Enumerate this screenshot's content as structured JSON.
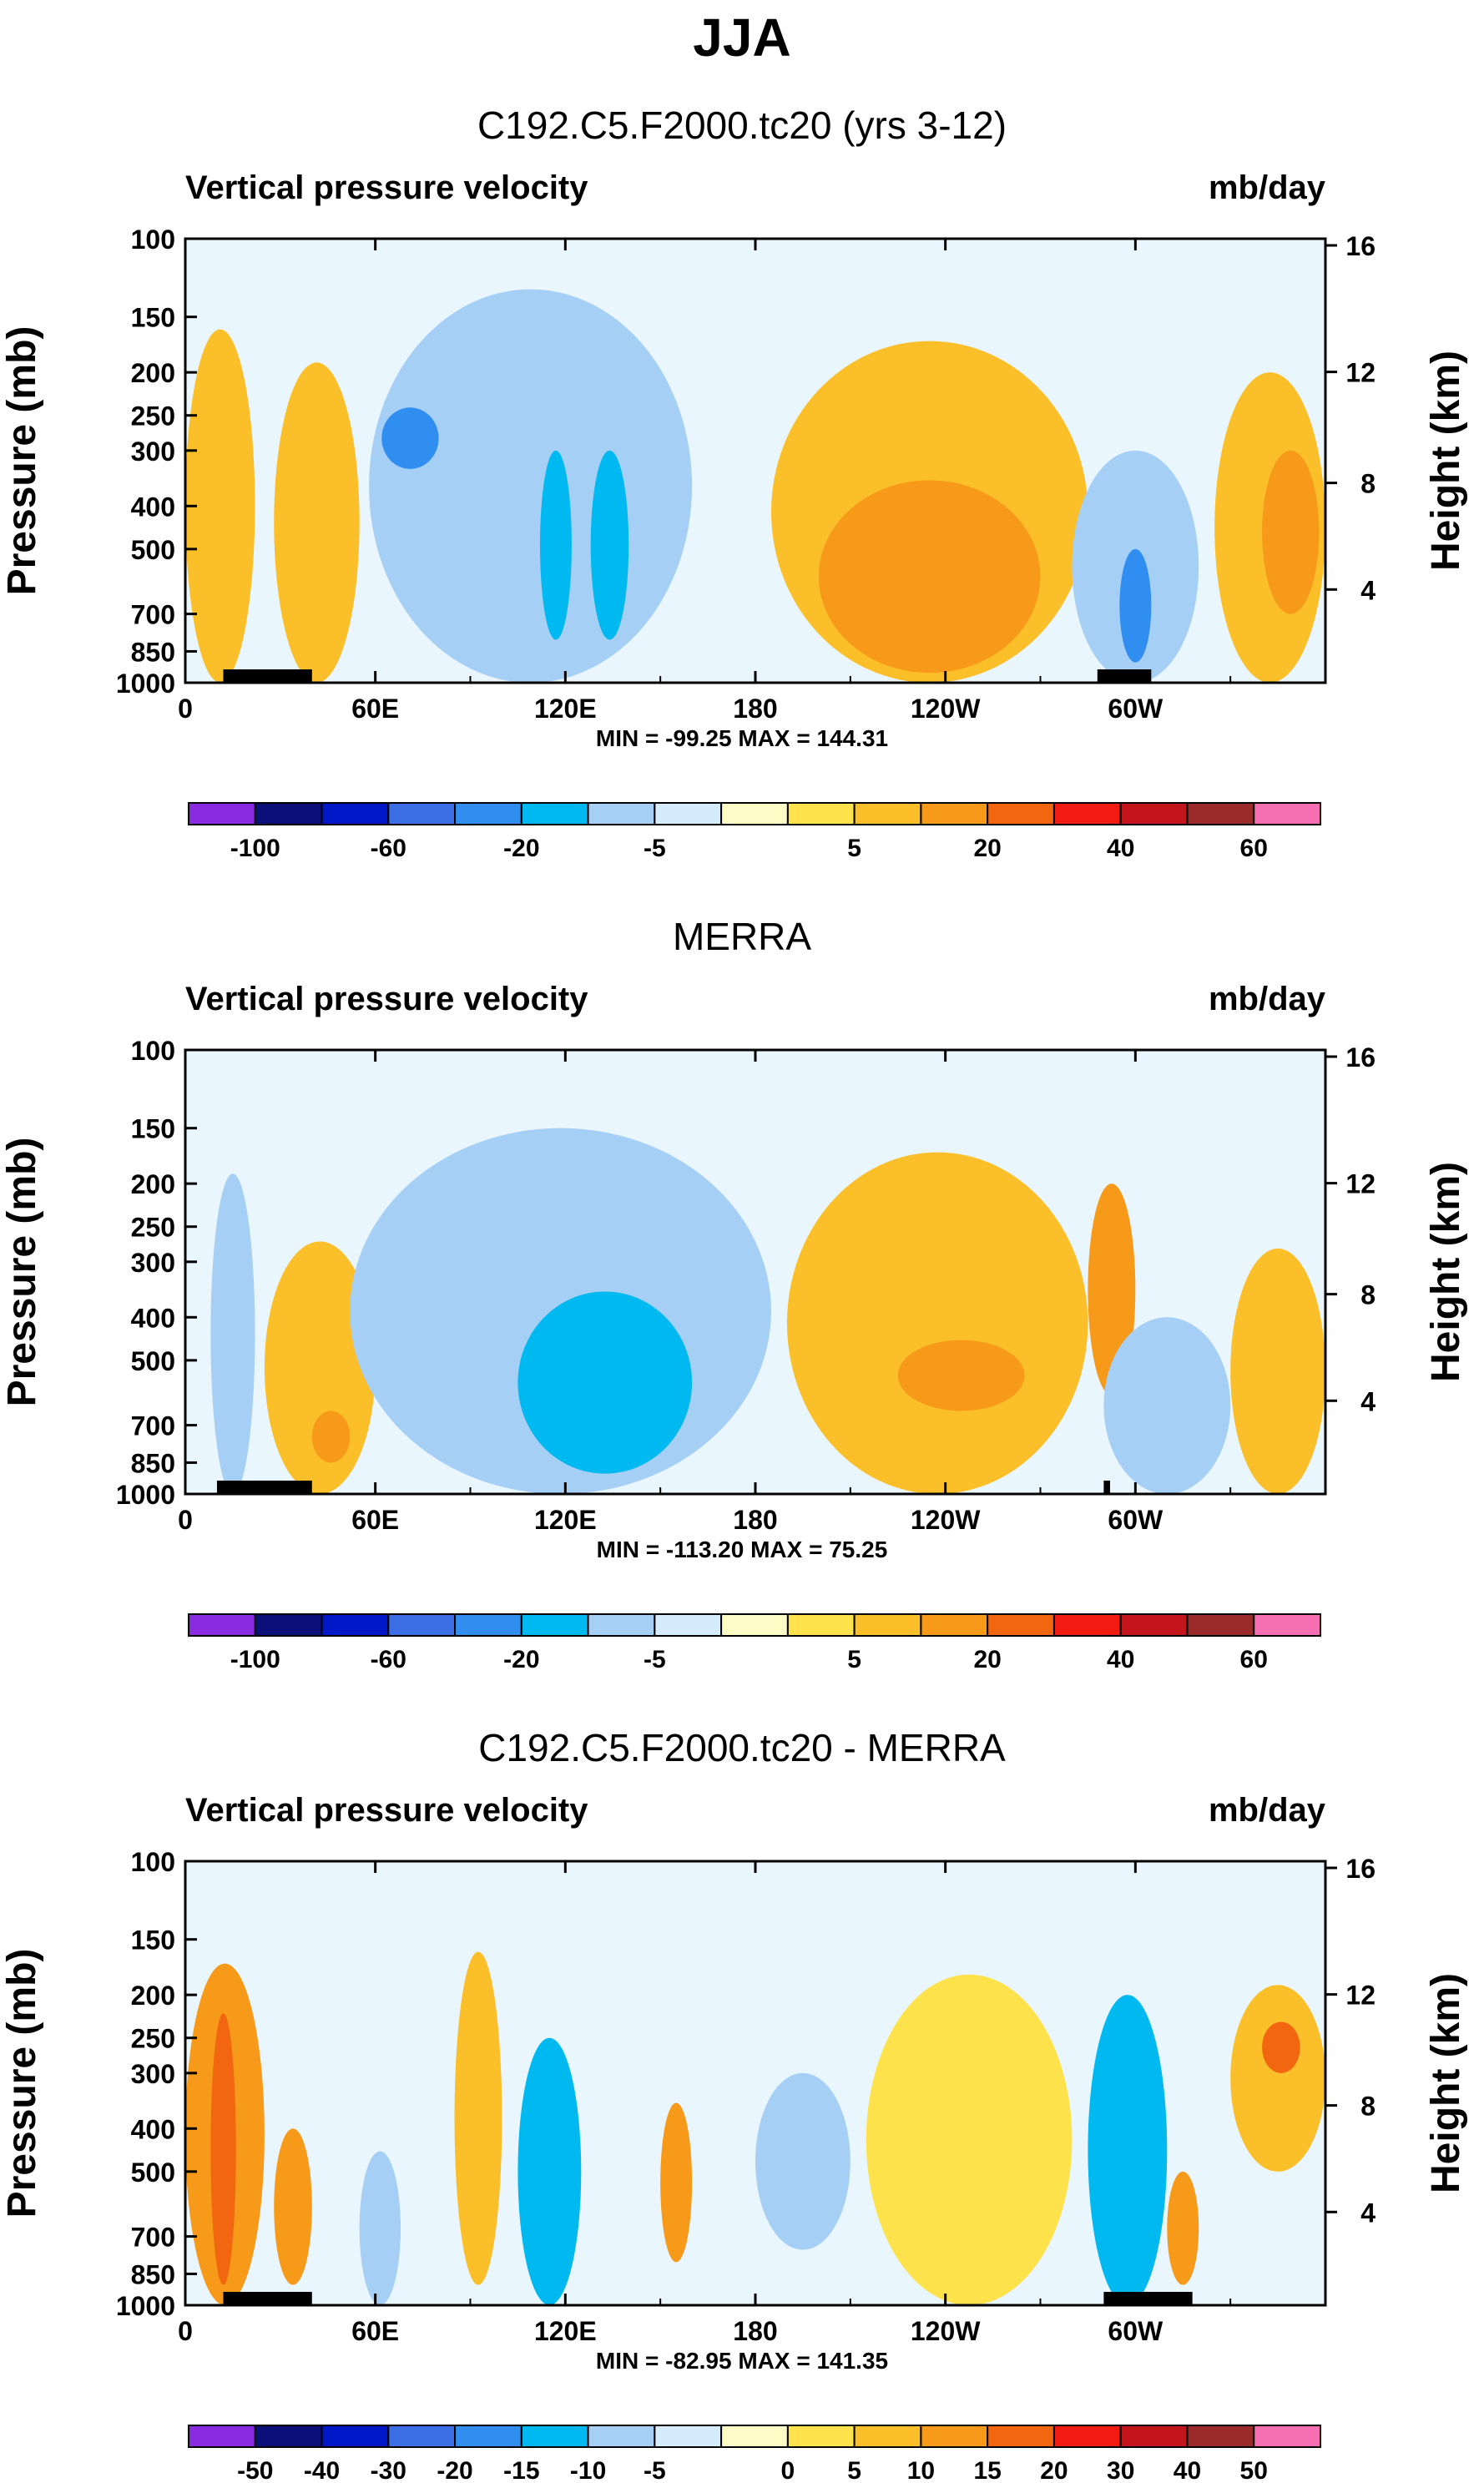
{
  "figure_title": "JJA",
  "chart_data": [
    {
      "type": "heatmap",
      "title": "C192.C5.F2000.tc20 (yrs 3-12)",
      "left_label": "Vertical pressure velocity",
      "right_label": "mb/day",
      "ylabel": "Pressure (mb)",
      "ylabel_right": "Height (km)",
      "y_ticks": [
        "100",
        "150",
        "200",
        "250",
        "300",
        "400",
        "500",
        "700",
        "850",
        "1000"
      ],
      "y_right_ticks": [
        "16",
        "12",
        "8",
        "4"
      ],
      "x_ticks": [
        "0",
        "60E",
        "120E",
        "180",
        "120W",
        "60W"
      ],
      "xlim_deg_east": [
        0,
        360
      ],
      "ylim_mb": [
        100,
        1000
      ],
      "stats": "MIN = -99.25  MAX = 144.31",
      "colorbar_labels": [
        "-100",
        "-60",
        "-20",
        "-5",
        "5",
        "20",
        "40",
        "60"
      ],
      "colorbar_colors": [
        "#8a2be2",
        "#0a0f7a",
        "#0018c8",
        "#3c6ee6",
        "#2f8ef0",
        "#00b9f0",
        "#a6cff5",
        "#d4ecfb",
        "#fefcc6",
        "#fde24b",
        "#fbbf2a",
        "#f79a19",
        "#f2660f",
        "#f21b12",
        "#c4151c",
        "#9b2a2a",
        "#f56fb2"
      ],
      "features": [
        {
          "x0": 0,
          "x1": 22,
          "p0": 160,
          "p1": 1000,
          "level": 2
        },
        {
          "x0": 28,
          "x1": 55,
          "p0": 190,
          "p1": 1000,
          "level": 2
        },
        {
          "x0": 58,
          "x1": 160,
          "p0": 130,
          "p1": 1000,
          "level": -2
        },
        {
          "x0": 62,
          "x1": 80,
          "p0": 240,
          "p1": 330,
          "level": -4
        },
        {
          "x0": 112,
          "x1": 122,
          "p0": 300,
          "p1": 800,
          "level": -3
        },
        {
          "x0": 128,
          "x1": 140,
          "p0": 300,
          "p1": 800,
          "level": -3
        },
        {
          "x0": 185,
          "x1": 285,
          "p0": 170,
          "p1": 1000,
          "level": 2
        },
        {
          "x0": 200,
          "x1": 270,
          "p0": 350,
          "p1": 950,
          "level": 3
        },
        {
          "x0": 280,
          "x1": 320,
          "p0": 300,
          "p1": 1000,
          "level": -2
        },
        {
          "x0": 295,
          "x1": 305,
          "p0": 500,
          "p1": 900,
          "level": -4
        },
        {
          "x0": 325,
          "x1": 360,
          "p0": 200,
          "p1": 1000,
          "level": 2
        },
        {
          "x0": 340,
          "x1": 358,
          "p0": 300,
          "p1": 700,
          "level": 3
        }
      ],
      "land_x_ranges": [
        [
          12,
          40
        ],
        [
          288,
          305
        ]
      ]
    },
    {
      "type": "heatmap",
      "title": "MERRA",
      "left_label": "Vertical pressure velocity",
      "right_label": "mb/day",
      "ylabel": "Pressure (mb)",
      "ylabel_right": "Height (km)",
      "y_ticks": [
        "100",
        "150",
        "200",
        "250",
        "300",
        "400",
        "500",
        "700",
        "850",
        "1000"
      ],
      "y_right_ticks": [
        "16",
        "12",
        "8",
        "4"
      ],
      "x_ticks": [
        "0",
        "60E",
        "120E",
        "180",
        "120W",
        "60W"
      ],
      "xlim_deg_east": [
        0,
        360
      ],
      "ylim_mb": [
        100,
        1000
      ],
      "stats": "MIN = -113.20  MAX =  75.25",
      "colorbar_labels": [
        "-100",
        "-60",
        "-20",
        "-5",
        "5",
        "20",
        "40",
        "60"
      ],
      "colorbar_colors": [
        "#8a2be2",
        "#0a0f7a",
        "#0018c8",
        "#3c6ee6",
        "#2f8ef0",
        "#00b9f0",
        "#a6cff5",
        "#d4ecfb",
        "#fefcc6",
        "#fde24b",
        "#fbbf2a",
        "#f79a19",
        "#f2660f",
        "#f21b12",
        "#c4151c",
        "#9b2a2a",
        "#f56fb2"
      ],
      "features": [
        {
          "x0": 8,
          "x1": 22,
          "p0": 190,
          "p1": 1000,
          "level": -2
        },
        {
          "x0": 25,
          "x1": 60,
          "p0": 270,
          "p1": 1000,
          "level": 2
        },
        {
          "x0": 40,
          "x1": 52,
          "p0": 650,
          "p1": 850,
          "level": 3
        },
        {
          "x0": 52,
          "x1": 185,
          "p0": 150,
          "p1": 1000,
          "level": -2
        },
        {
          "x0": 105,
          "x1": 160,
          "p0": 350,
          "p1": 900,
          "level": -3
        },
        {
          "x0": 190,
          "x1": 285,
          "p0": 170,
          "p1": 1000,
          "level": 2
        },
        {
          "x0": 225,
          "x1": 265,
          "p0": 450,
          "p1": 650,
          "level": 3
        },
        {
          "x0": 285,
          "x1": 300,
          "p0": 200,
          "p1": 600,
          "level": 3
        },
        {
          "x0": 290,
          "x1": 330,
          "p0": 400,
          "p1": 1000,
          "level": -2
        },
        {
          "x0": 330,
          "x1": 360,
          "p0": 280,
          "p1": 1000,
          "level": 2
        }
      ],
      "land_x_ranges": [
        [
          10,
          40
        ],
        [
          290,
          292
        ]
      ]
    },
    {
      "type": "heatmap",
      "title": "C192.C5.F2000.tc20 - MERRA",
      "left_label": "Vertical pressure velocity",
      "right_label": "mb/day",
      "ylabel": "Pressure (mb)",
      "ylabel_right": "Height (km)",
      "y_ticks": [
        "100",
        "150",
        "200",
        "250",
        "300",
        "400",
        "500",
        "700",
        "850",
        "1000"
      ],
      "y_right_ticks": [
        "16",
        "12",
        "8",
        "4"
      ],
      "x_ticks": [
        "0",
        "60E",
        "120E",
        "180",
        "120W",
        "60W"
      ],
      "xlim_deg_east": [
        0,
        360
      ],
      "ylim_mb": [
        100,
        1000
      ],
      "stats": "MIN = -82.95  MAX = 141.35",
      "colorbar_labels": [
        "-50",
        "-40",
        "-30",
        "-20",
        "-15",
        "-10",
        "-5",
        "0",
        "5",
        "10",
        "15",
        "20",
        "30",
        "40",
        "50"
      ],
      "colorbar_colors": [
        "#8a2be2",
        "#0a0f7a",
        "#0018c8",
        "#3c6ee6",
        "#2f8ef0",
        "#00b9f0",
        "#a6cff5",
        "#d4ecfb",
        "#fefcc6",
        "#fde24b",
        "#fbbf2a",
        "#f79a19",
        "#f2660f",
        "#f21b12",
        "#c4151c",
        "#9b2a2a",
        "#f56fb2"
      ],
      "features": [
        {
          "x0": 0,
          "x1": 25,
          "p0": 170,
          "p1": 1000,
          "level": 3
        },
        {
          "x0": 8,
          "x1": 16,
          "p0": 220,
          "p1": 900,
          "level": 4
        },
        {
          "x0": 28,
          "x1": 40,
          "p0": 400,
          "p1": 900,
          "level": 3
        },
        {
          "x0": 55,
          "x1": 68,
          "p0": 450,
          "p1": 1000,
          "level": -2
        },
        {
          "x0": 85,
          "x1": 100,
          "p0": 160,
          "p1": 900,
          "level": 2
        },
        {
          "x0": 105,
          "x1": 125,
          "p0": 250,
          "p1": 1000,
          "level": -3
        },
        {
          "x0": 150,
          "x1": 160,
          "p0": 350,
          "p1": 800,
          "level": 3
        },
        {
          "x0": 180,
          "x1": 210,
          "p0": 300,
          "p1": 750,
          "level": -2
        },
        {
          "x0": 215,
          "x1": 280,
          "p0": 180,
          "p1": 1000,
          "level": 1
        },
        {
          "x0": 285,
          "x1": 310,
          "p0": 200,
          "p1": 1000,
          "level": -3
        },
        {
          "x0": 310,
          "x1": 320,
          "p0": 500,
          "p1": 900,
          "level": 3
        },
        {
          "x0": 330,
          "x1": 360,
          "p0": 190,
          "p1": 500,
          "level": 2
        },
        {
          "x0": 340,
          "x1": 352,
          "p0": 230,
          "p1": 300,
          "level": 4
        }
      ],
      "land_x_ranges": [
        [
          12,
          40
        ],
        [
          290,
          318
        ]
      ]
    }
  ]
}
